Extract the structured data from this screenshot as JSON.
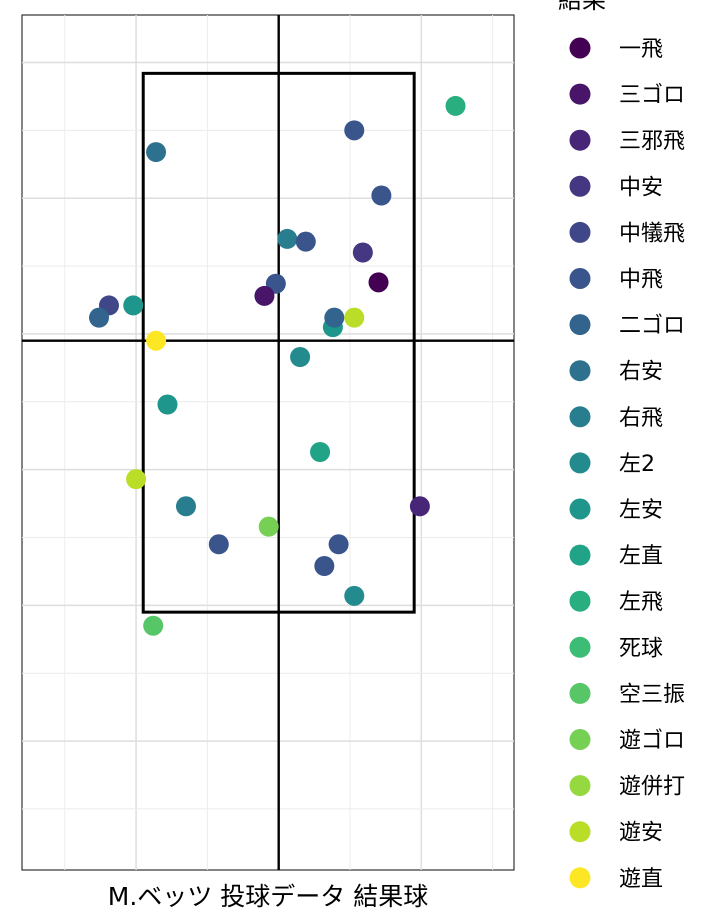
{
  "chart_data": {
    "type": "scatter",
    "title": "",
    "xlabel": "M.ベッツ 投球データ 結果球",
    "ylabel": "",
    "xlim": [
      -1.8,
      1.65
    ],
    "ylim": [
      -0.95,
      5.35
    ],
    "grid": true,
    "legend_title": "結果",
    "legend_position": "right",
    "strike_zone": {
      "x0": -0.95,
      "x1": 0.95,
      "y0": 0.95,
      "y1": 4.92
    },
    "center_lines": {
      "x": 0,
      "y": 2.95
    },
    "categories": [
      "一飛",
      "三ゴロ",
      "三邪飛",
      "中安",
      "中犠飛",
      "中飛",
      "二ゴロ",
      "右安",
      "右飛",
      "左2",
      "左安",
      "左直",
      "左飛",
      "死球",
      "空三振",
      "遊ゴロ",
      "遊併打",
      "遊安",
      "遊直"
    ],
    "colors": [
      "#440154",
      "#481568",
      "#482677",
      "#453781",
      "#3F4788",
      "#39558C",
      "#32648E",
      "#2D718E",
      "#287D8E",
      "#238A8D",
      "#1F968B",
      "#20A386",
      "#29AF7F",
      "#3CBC75",
      "#56C667",
      "#75D054",
      "#95D840",
      "#BADE28",
      "#FDE725"
    ],
    "points": [
      {
        "x": 1.24,
        "y": 4.68,
        "result": "左飛"
      },
      {
        "x": 0.53,
        "y": 4.5,
        "result": "中飛"
      },
      {
        "x": -0.86,
        "y": 4.34,
        "result": "右安"
      },
      {
        "x": 0.72,
        "y": 4.02,
        "result": "中飛"
      },
      {
        "x": 0.06,
        "y": 3.7,
        "result": "右飛"
      },
      {
        "x": 0.19,
        "y": 3.68,
        "result": "中飛"
      },
      {
        "x": 0.59,
        "y": 3.6,
        "result": "中安"
      },
      {
        "x": -0.02,
        "y": 3.37,
        "result": "中飛"
      },
      {
        "x": 0.7,
        "y": 3.38,
        "result": "一飛"
      },
      {
        "x": -0.1,
        "y": 3.28,
        "result": "三ゴロ"
      },
      {
        "x": -1.19,
        "y": 3.21,
        "result": "中犠飛"
      },
      {
        "x": -1.02,
        "y": 3.21,
        "result": "左安"
      },
      {
        "x": -1.26,
        "y": 3.12,
        "result": "二ゴロ"
      },
      {
        "x": 0.38,
        "y": 3.05,
        "result": "左安"
      },
      {
        "x": 0.39,
        "y": 3.12,
        "result": "二ゴロ"
      },
      {
        "x": 0.53,
        "y": 3.12,
        "result": "遊安"
      },
      {
        "x": -0.86,
        "y": 2.95,
        "result": "遊直"
      },
      {
        "x": 0.15,
        "y": 2.83,
        "result": "左2"
      },
      {
        "x": -0.78,
        "y": 2.48,
        "result": "左安"
      },
      {
        "x": 0.29,
        "y": 2.13,
        "result": "左直"
      },
      {
        "x": -1.0,
        "y": 1.93,
        "result": "遊安"
      },
      {
        "x": -0.65,
        "y": 1.73,
        "result": "右飛"
      },
      {
        "x": 0.99,
        "y": 1.73,
        "result": "三邪飛"
      },
      {
        "x": -0.07,
        "y": 1.58,
        "result": "遊ゴロ"
      },
      {
        "x": -0.42,
        "y": 1.45,
        "result": "中飛"
      },
      {
        "x": 0.42,
        "y": 1.45,
        "result": "中飛"
      },
      {
        "x": 0.32,
        "y": 1.29,
        "result": "中飛"
      },
      {
        "x": 0.53,
        "y": 1.07,
        "result": "左2"
      },
      {
        "x": -0.88,
        "y": 0.85,
        "result": "空三振"
      }
    ]
  }
}
